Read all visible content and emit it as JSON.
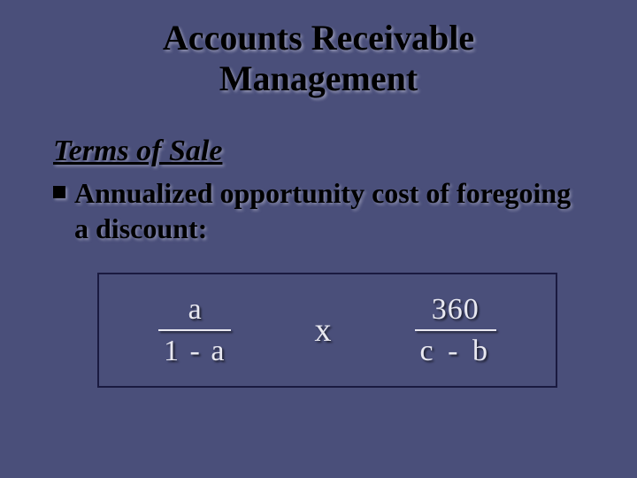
{
  "colors": {
    "background": "#4a4f7a",
    "title_text": "#000000",
    "body_text": "#000000",
    "formula_text": "#e8e8f0",
    "box_border": "#1a1a40"
  },
  "typography": {
    "family": "Times New Roman",
    "title_size_pt": 40,
    "subtitle_size_pt": 34,
    "bullet_size_pt": 32,
    "formula_size_pt": 34
  },
  "title": {
    "line1": "Accounts Receivable",
    "line2": "Management"
  },
  "subtitle": "Terms of Sale",
  "bullet": "Annualized opportunity cost of foregoing a discount:",
  "formula": {
    "fraction1": {
      "numerator": "a",
      "denominator": "1 - a"
    },
    "operator": "x",
    "fraction2": {
      "numerator": "360",
      "denominator": "c  -  b"
    }
  }
}
